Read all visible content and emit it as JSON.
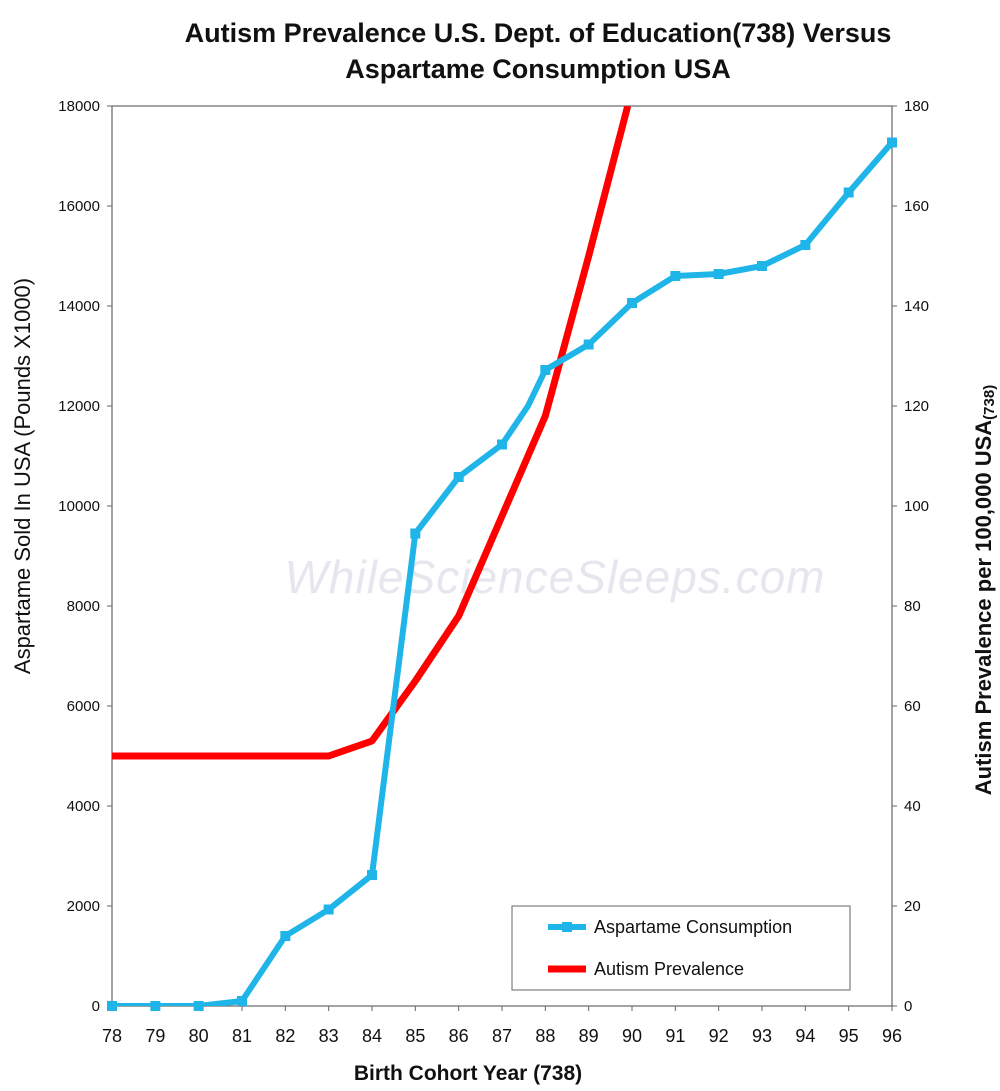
{
  "watermark": "WhileScienceSleeps.com",
  "chart_data": {
    "type": "line",
    "title_line1": "Autism Prevalence U.S. Dept. of Education(738) Versus",
    "title_line2": "Aspartame Consumption USA",
    "xlabel": "Birth Cohort Year (738)",
    "ylabel_left": "Aspartame Sold In USA  (Pounds X1000)",
    "ylabel_right": "Autism Prevalence per 100,000 USA",
    "ylabel_right_sub": "(738)",
    "x": [
      "78",
      "79",
      "80",
      "81",
      "82",
      "83",
      "84",
      "85",
      "86",
      "87",
      "88",
      "89",
      "90",
      "91",
      "92",
      "93",
      "94",
      "95",
      "96"
    ],
    "ylim_left": [
      0,
      18000
    ],
    "ylim_right": [
      0,
      180
    ],
    "yticks_left": [
      "0",
      "2000",
      "4000",
      "6000",
      "8000",
      "10000",
      "12000",
      "14000",
      "16000",
      "18000"
    ],
    "yticks_right": [
      "0",
      "20",
      "40",
      "60",
      "80",
      "100",
      "120",
      "140",
      "160",
      "180"
    ],
    "legend_position": "bottom-right",
    "series": [
      {
        "name": "Aspartame Consumption",
        "axis": "left",
        "color": "#1fb5e8",
        "marker": "square",
        "points": [
          {
            "x": 78,
            "y": 0
          },
          {
            "x": 79,
            "y": 0
          },
          {
            "x": 80,
            "y": 0
          },
          {
            "x": 81,
            "y": 100
          },
          {
            "x": 82,
            "y": 1400
          },
          {
            "x": 83,
            "y": 1930
          },
          {
            "x": 84,
            "y": 2620
          },
          {
            "x": 85,
            "y": 9450
          },
          {
            "x": 86,
            "y": 10580
          },
          {
            "x": 87,
            "y": 11230
          },
          {
            "x": 87.6,
            "y": 12000
          },
          {
            "x": 88,
            "y": 12720
          },
          {
            "x": 89,
            "y": 13230
          },
          {
            "x": 90,
            "y": 14060
          },
          {
            "x": 91,
            "y": 14600
          },
          {
            "x": 92,
            "y": 14640
          },
          {
            "x": 93,
            "y": 14800
          },
          {
            "x": 94,
            "y": 15220
          },
          {
            "x": 95,
            "y": 16270
          },
          {
            "x": 96,
            "y": 17270
          }
        ]
      },
      {
        "name": "Autism Prevalence",
        "axis": "right",
        "color": "#ff0000",
        "marker": "none",
        "points": [
          {
            "x": 78,
            "y": 50
          },
          {
            "x": 79,
            "y": 50
          },
          {
            "x": 80,
            "y": 50
          },
          {
            "x": 81,
            "y": 50
          },
          {
            "x": 82,
            "y": 50
          },
          {
            "x": 83,
            "y": 50
          },
          {
            "x": 84,
            "y": 53
          },
          {
            "x": 85,
            "y": 65
          },
          {
            "x": 86,
            "y": 78
          },
          {
            "x": 87,
            "y": 98
          },
          {
            "x": 88,
            "y": 118
          },
          {
            "x": 89,
            "y": 150
          },
          {
            "x": 89.9,
            "y": 180
          }
        ]
      }
    ]
  }
}
